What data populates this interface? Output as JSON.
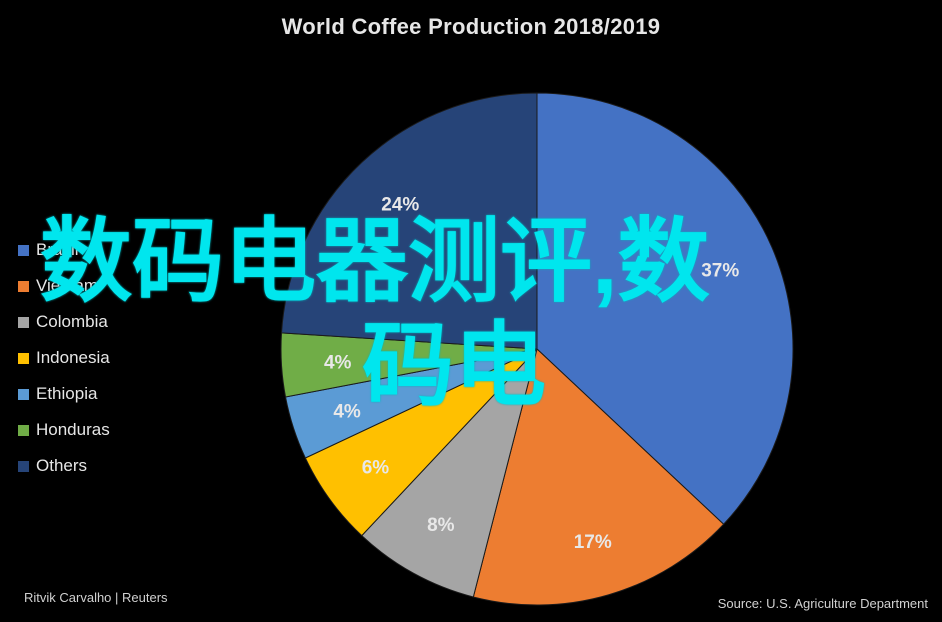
{
  "chart_data": {
    "type": "pie",
    "title": "World Coffee Production 2018/2019",
    "slices": [
      {
        "label": "Brazil",
        "value": 37,
        "display": "37%",
        "color": "#4472c4"
      },
      {
        "label": "Vietnam",
        "value": 17,
        "display": "17%",
        "color": "#ed7d31"
      },
      {
        "label": "Colombia",
        "value": 8,
        "display": "8%",
        "color": "#a5a5a5"
      },
      {
        "label": "Indonesia",
        "value": 6,
        "display": "6%",
        "color": "#ffc000"
      },
      {
        "label": "Ethiopia",
        "value": 4,
        "display": "4%",
        "color": "#5b9bd5"
      },
      {
        "label": "Honduras",
        "value": 4,
        "display": "4%",
        "color": "#70ad47"
      },
      {
        "label": "Others",
        "value": 24,
        "display": "24%",
        "color": "#264478"
      }
    ],
    "legend_position": "left"
  },
  "credits": {
    "author": "Ritvik Carvalho | Reuters",
    "source": "Source: U.S. Agriculture Department"
  },
  "watermark": {
    "line1": "数码电器测评,数",
    "line2": "码电",
    "color": "#00e6ee"
  }
}
